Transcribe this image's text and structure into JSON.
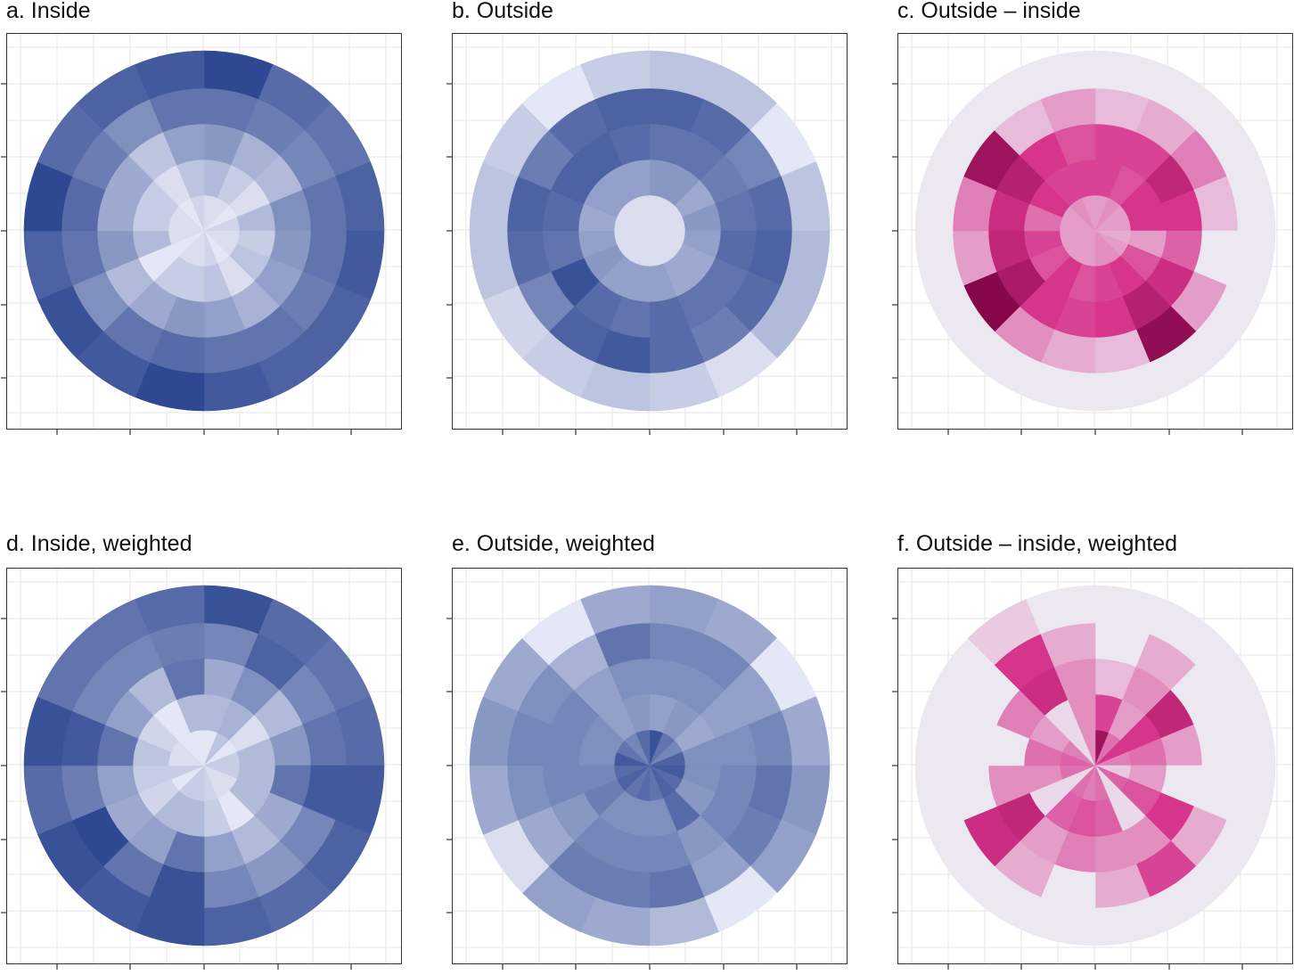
{
  "colors": {
    "blue_light": "#eef0fa",
    "blue_dark": "#243f8c",
    "pink_light": "#ece8f2",
    "pink_mid": "#d7348c",
    "pink_dark": "#7a0041",
    "grid": "#e6e6e6",
    "border": "#333333"
  },
  "chart_data": [
    {
      "id": "a",
      "title": "a. Inside",
      "type": "heatmap",
      "coordinate_system": "polar",
      "palette": "blues",
      "sectors": 16,
      "rings": 5,
      "grid": true,
      "axis_tick_labels": "none",
      "values": [
        [
          0.1,
          0.3,
          0.5,
          0.7,
          0.95
        ],
        [
          0.1,
          0.2,
          0.35,
          0.65,
          0.75
        ],
        [
          0.05,
          0.1,
          0.3,
          0.6,
          0.7
        ],
        [
          0.15,
          0.3,
          0.55,
          0.7,
          0.8
        ],
        [
          0.1,
          0.2,
          0.5,
          0.7,
          0.85
        ],
        [
          0.1,
          0.25,
          0.45,
          0.65,
          0.8
        ],
        [
          0.05,
          0.1,
          0.35,
          0.7,
          0.8
        ],
        [
          0.15,
          0.25,
          0.45,
          0.7,
          0.85
        ],
        [
          0.1,
          0.2,
          0.5,
          0.75,
          0.95
        ],
        [
          0.1,
          0.2,
          0.4,
          0.7,
          0.85
        ],
        [
          0.05,
          0.05,
          0.3,
          0.55,
          0.9
        ],
        [
          0.1,
          0.3,
          0.5,
          0.7,
          0.8
        ],
        [
          0.1,
          0.2,
          0.4,
          0.75,
          0.95
        ],
        [
          0.1,
          0.2,
          0.4,
          0.65,
          0.75
        ],
        [
          0.05,
          0.1,
          0.25,
          0.55,
          0.8
        ],
        [
          0.15,
          0.25,
          0.45,
          0.7,
          0.85
        ]
      ]
    },
    {
      "id": "b",
      "title": "b. Outside",
      "type": "heatmap",
      "coordinate_system": "polar",
      "palette": "blues",
      "sectors": 16,
      "rings": 5,
      "grid": true,
      "axis_tick_labels": "none",
      "values": [
        [
          0.1,
          0.5,
          0.7,
          0.8,
          0.25
        ],
        [
          0.1,
          0.5,
          0.7,
          0.75,
          0.25
        ],
        [
          0.1,
          0.4,
          0.65,
          0.6,
          0.05
        ],
        [
          0.1,
          0.5,
          0.7,
          0.75,
          0.25
        ],
        [
          0.1,
          0.45,
          0.75,
          0.8,
          0.3
        ],
        [
          0.1,
          0.4,
          0.7,
          0.75,
          0.3
        ],
        [
          0.1,
          0.4,
          0.7,
          0.65,
          0.1
        ],
        [
          0.1,
          0.45,
          0.75,
          0.75,
          0.2
        ],
        [
          0.1,
          0.45,
          0.7,
          0.85,
          0.25
        ],
        [
          0.1,
          0.45,
          0.75,
          0.8,
          0.2
        ],
        [
          0.1,
          0.5,
          0.9,
          0.6,
          0.15
        ],
        [
          0.1,
          0.45,
          0.7,
          0.75,
          0.25
        ],
        [
          0.1,
          0.4,
          0.75,
          0.8,
          0.25
        ],
        [
          0.1,
          0.45,
          0.8,
          0.65,
          0.2
        ],
        [
          0.1,
          0.45,
          0.8,
          0.75,
          0.05
        ],
        [
          0.1,
          0.45,
          0.75,
          0.8,
          0.2
        ]
      ]
    },
    {
      "id": "c",
      "title": "c. Outside – inside",
      "type": "heatmap",
      "coordinate_system": "polar",
      "palette": "purple-pink",
      "sectors": 16,
      "rings": 5,
      "grid": true,
      "axis_tick_labels": "none",
      "values": [
        [
          0.25,
          0.55,
          0.55,
          0.15,
          0.0
        ],
        [
          0.3,
          0.5,
          0.55,
          0.2,
          0.0
        ],
        [
          0.25,
          0.6,
          0.7,
          0.35,
          0.0
        ],
        [
          0.25,
          0.6,
          0.6,
          0.15,
          0.0
        ],
        [
          0.2,
          0.25,
          0.45,
          0.0,
          0.0
        ],
        [
          0.25,
          0.5,
          0.65,
          0.25,
          0.0
        ],
        [
          0.3,
          0.6,
          0.75,
          0.9,
          0.0
        ],
        [
          0.3,
          0.55,
          0.6,
          0.15,
          0.0
        ],
        [
          0.25,
          0.5,
          0.55,
          0.2,
          0.0
        ],
        [
          0.25,
          0.6,
          0.6,
          0.3,
          0.0
        ],
        [
          0.25,
          0.5,
          0.8,
          0.95,
          0.0
        ],
        [
          0.25,
          0.55,
          0.7,
          0.25,
          0.0
        ],
        [
          0.25,
          0.4,
          0.65,
          0.35,
          0.0
        ],
        [
          0.25,
          0.6,
          0.75,
          0.85,
          0.0
        ],
        [
          0.3,
          0.55,
          0.6,
          0.15,
          0.0
        ],
        [
          0.25,
          0.55,
          0.5,
          0.25,
          0.0
        ]
      ]
    },
    {
      "id": "d",
      "title": "d. Inside, weighted",
      "type": "heatmap",
      "coordinate_system": "polar",
      "palette": "blues",
      "sectors": 16,
      "rings": 5,
      "grid": true,
      "axis_tick_labels": "none",
      "values": [
        [
          0.05,
          0.3,
          0.4,
          0.6,
          0.9
        ],
        [
          0.25,
          0.35,
          0.55,
          0.8,
          0.75
        ],
        [
          0.05,
          0.1,
          0.3,
          0.6,
          0.7
        ],
        [
          0.2,
          0.3,
          0.5,
          0.7,
          0.75
        ],
        [
          0.2,
          0.3,
          0.7,
          0.85,
          0.85
        ],
        [
          0.1,
          0.3,
          0.4,
          0.6,
          0.8
        ],
        [
          0.1,
          0.05,
          0.3,
          0.5,
          0.75
        ],
        [
          0.15,
          0.2,
          0.45,
          0.6,
          0.8
        ],
        [
          0.2,
          0.3,
          0.7,
          0.9,
          0.9
        ],
        [
          0.2,
          0.3,
          0.45,
          0.7,
          0.85
        ],
        [
          0.05,
          0.15,
          0.4,
          0.95,
          0.9
        ],
        [
          0.2,
          0.2,
          0.45,
          0.65,
          0.75
        ],
        [
          0.1,
          0.25,
          0.7,
          0.85,
          0.9
        ],
        [
          0.1,
          0.15,
          0.45,
          0.6,
          0.7
        ],
        [
          0.05,
          0.05,
          0.3,
          0.6,
          0.7
        ],
        [
          0.05,
          0.3,
          0.7,
          0.65,
          0.75
        ]
      ]
    },
    {
      "id": "e",
      "title": "e. Outside, weighted",
      "type": "heatmap",
      "coordinate_system": "polar",
      "palette": "blues",
      "sectors": 16,
      "rings": 5,
      "grid": true,
      "axis_tick_labels": "none",
      "values": [
        [
          0.9,
          0.45,
          0.55,
          0.6,
          0.45
        ],
        [
          0.7,
          0.5,
          0.55,
          0.6,
          0.4
        ],
        [
          0.6,
          0.4,
          0.45,
          0.45,
          0.05
        ],
        [
          0.8,
          0.55,
          0.55,
          0.6,
          0.4
        ],
        [
          0.85,
          0.55,
          0.6,
          0.7,
          0.5
        ],
        [
          0.75,
          0.5,
          0.6,
          0.65,
          0.45
        ],
        [
          0.8,
          0.75,
          0.5,
          0.45,
          0.05
        ],
        [
          0.7,
          0.55,
          0.6,
          0.7,
          0.3
        ],
        [
          0.75,
          0.55,
          0.6,
          0.65,
          0.4
        ],
        [
          0.7,
          0.55,
          0.6,
          0.65,
          0.45
        ],
        [
          0.8,
          0.65,
          0.5,
          0.4,
          0.1
        ],
        [
          0.75,
          0.6,
          0.6,
          0.55,
          0.4
        ],
        [
          0.85,
          0.55,
          0.6,
          0.6,
          0.5
        ],
        [
          0.7,
          0.55,
          0.6,
          0.55,
          0.4
        ],
        [
          0.6,
          0.45,
          0.45,
          0.35,
          0.05
        ],
        [
          0.75,
          0.5,
          0.55,
          0.7,
          0.4
        ]
      ]
    },
    {
      "id": "f",
      "title": "f. Outside – inside, weighted",
      "type": "heatmap",
      "coordinate_system": "polar",
      "palette": "purple-pink",
      "sectors": 16,
      "rings": 5,
      "grid": true,
      "axis_tick_labels": "none",
      "values": [
        [
          0.85,
          0.55,
          0.15,
          0.0,
          0.0
        ],
        [
          0.4,
          0.25,
          0.3,
          0.2,
          0.0
        ],
        [
          0.6,
          0.6,
          0.7,
          0.0,
          0.0
        ],
        [
          0.35,
          0.4,
          0.25,
          0.0,
          0.0
        ],
        [
          0.1,
          0.25,
          0.0,
          0.0,
          0.0
        ],
        [
          0.45,
          0.5,
          0.6,
          0.2,
          0.0
        ],
        [
          0.05,
          0.05,
          0.3,
          0.55,
          0.0
        ],
        [
          0.4,
          0.45,
          0.3,
          0.2,
          0.0
        ],
        [
          0.35,
          0.5,
          0.35,
          0.0,
          0.0
        ],
        [
          0.4,
          0.45,
          0.25,
          0.2,
          0.0
        ],
        [
          0.05,
          0.05,
          0.7,
          0.65,
          0.0
        ],
        [
          0.4,
          0.3,
          0.3,
          0.0,
          0.0
        ],
        [
          0.45,
          0.4,
          0.0,
          0.0,
          0.0
        ],
        [
          0.35,
          0.25,
          0.35,
          0.0,
          0.0
        ],
        [
          0.05,
          0.05,
          0.65,
          0.6,
          0.1
        ],
        [
          0.3,
          0.3,
          0.3,
          0.2,
          0.0
        ]
      ]
    }
  ]
}
